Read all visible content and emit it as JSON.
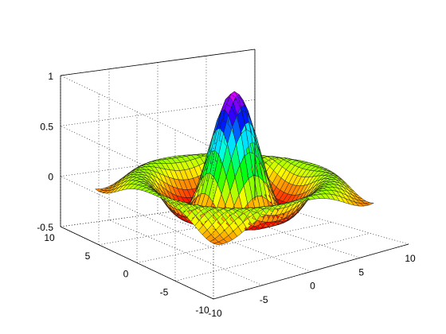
{
  "chart_data": {
    "type": "surface",
    "function": "sin(R)/R, R = sqrt(x^2 + y^2)",
    "x": {
      "range": [
        -8,
        8
      ],
      "steps": 33
    },
    "y": {
      "range": [
        -8,
        8
      ],
      "steps": 33
    },
    "xlim": [
      -10,
      10
    ],
    "ylim": [
      -10,
      10
    ],
    "zlim": [
      -0.5,
      1
    ],
    "xticks": [
      -10,
      -5,
      0,
      5,
      10
    ],
    "yticks": [
      -10,
      -5,
      0,
      5,
      10
    ],
    "zticks": [
      -0.5,
      0,
      0.5,
      1
    ],
    "xtick_labels": [
      "-10",
      "-5",
      "0",
      "5",
      "10"
    ],
    "ytick_labels": [
      "-10",
      "-5",
      "0",
      "5",
      "10"
    ],
    "ztick_labels": [
      "-0.5",
      "0",
      "0.5",
      "1"
    ],
    "colormap": "hsv",
    "grid": true,
    "box": true,
    "title": "",
    "xlabel": "",
    "ylabel": "",
    "zlabel": ""
  }
}
